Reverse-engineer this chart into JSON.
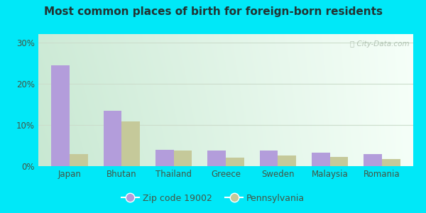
{
  "title": "Most common places of birth for foreign-born residents",
  "categories": [
    "Japan",
    "Bhutan",
    "Thailand",
    "Greece",
    "Sweden",
    "Malaysia",
    "Romania"
  ],
  "zip_values": [
    24.5,
    13.5,
    4.0,
    3.8,
    3.8,
    3.2,
    3.0
  ],
  "state_values": [
    3.0,
    10.8,
    3.8,
    2.0,
    2.5,
    2.3,
    1.8
  ],
  "zip_color": "#b39ddb",
  "state_color": "#c5c99a",
  "background_outer": "#00e8f8",
  "ylim": [
    0,
    32
  ],
  "yticks": [
    0,
    10,
    20,
    30
  ],
  "ytick_labels": [
    "0%",
    "10%",
    "20%",
    "30%"
  ],
  "legend_zip_label": "Zip code 19002",
  "legend_state_label": "Pennsylvania",
  "watermark": "City-Data.com",
  "title_fontsize": 11,
  "tick_fontsize": 8.5,
  "legend_fontsize": 9,
  "title_color": "#223333",
  "tick_color": "#445544",
  "grid_color": "#ccddcc",
  "bg_gradient_left": "#c8e8c8",
  "bg_gradient_right": "#eefff5"
}
